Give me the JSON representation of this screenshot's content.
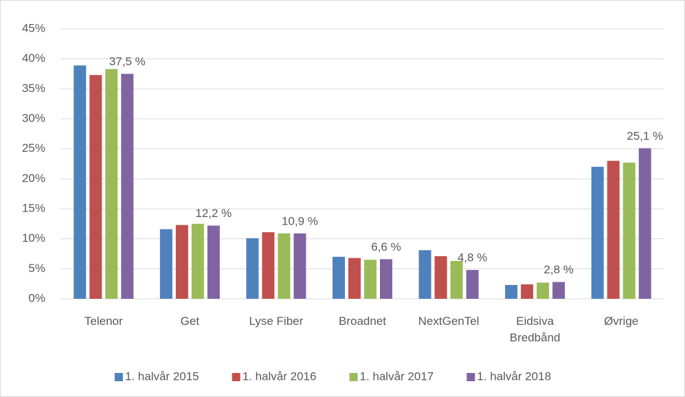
{
  "chart_data": {
    "type": "bar",
    "categories": [
      "Telenor",
      "Get",
      "Lyse Fiber",
      "Broadnet",
      "NextGenTel",
      "Eidsiva Bredbånd",
      "Øvrige"
    ],
    "series": [
      {
        "name": "1. halvår 2015",
        "color": "#4f81bd",
        "values": [
          38.9,
          11.6,
          10.1,
          7.0,
          8.1,
          2.3,
          22.0
        ]
      },
      {
        "name": "1. halvår 2016",
        "color": "#c0504d",
        "values": [
          37.3,
          12.3,
          11.1,
          6.8,
          7.1,
          2.4,
          23.0
        ]
      },
      {
        "name": "1. halvår 2017",
        "color": "#9bbb59",
        "values": [
          38.3,
          12.5,
          10.9,
          6.5,
          6.3,
          2.7,
          22.7
        ]
      },
      {
        "name": "1. halvår 2018",
        "color": "#8064a2",
        "values": [
          37.5,
          12.2,
          10.9,
          6.6,
          4.8,
          2.8,
          25.1
        ],
        "value_labels": [
          "37,5 %",
          "12,2 %",
          "10,9 %",
          "6,6 %",
          "4,8 %",
          "2,8 %",
          "25,1 %"
        ]
      }
    ],
    "ylim": [
      0,
      45
    ],
    "yticks": [
      {
        "value": 0,
        "label": "0%"
      },
      {
        "value": 5,
        "label": "5%"
      },
      {
        "value": 10,
        "label": "10%"
      },
      {
        "value": 15,
        "label": "15%"
      },
      {
        "value": 20,
        "label": "20%"
      },
      {
        "value": 25,
        "label": "25%"
      },
      {
        "value": 30,
        "label": "30%"
      },
      {
        "value": 35,
        "label": "35%"
      },
      {
        "value": 40,
        "label": "40%"
      },
      {
        "value": 45,
        "label": "45%"
      }
    ],
    "grid": true,
    "legend": "bottom"
  }
}
